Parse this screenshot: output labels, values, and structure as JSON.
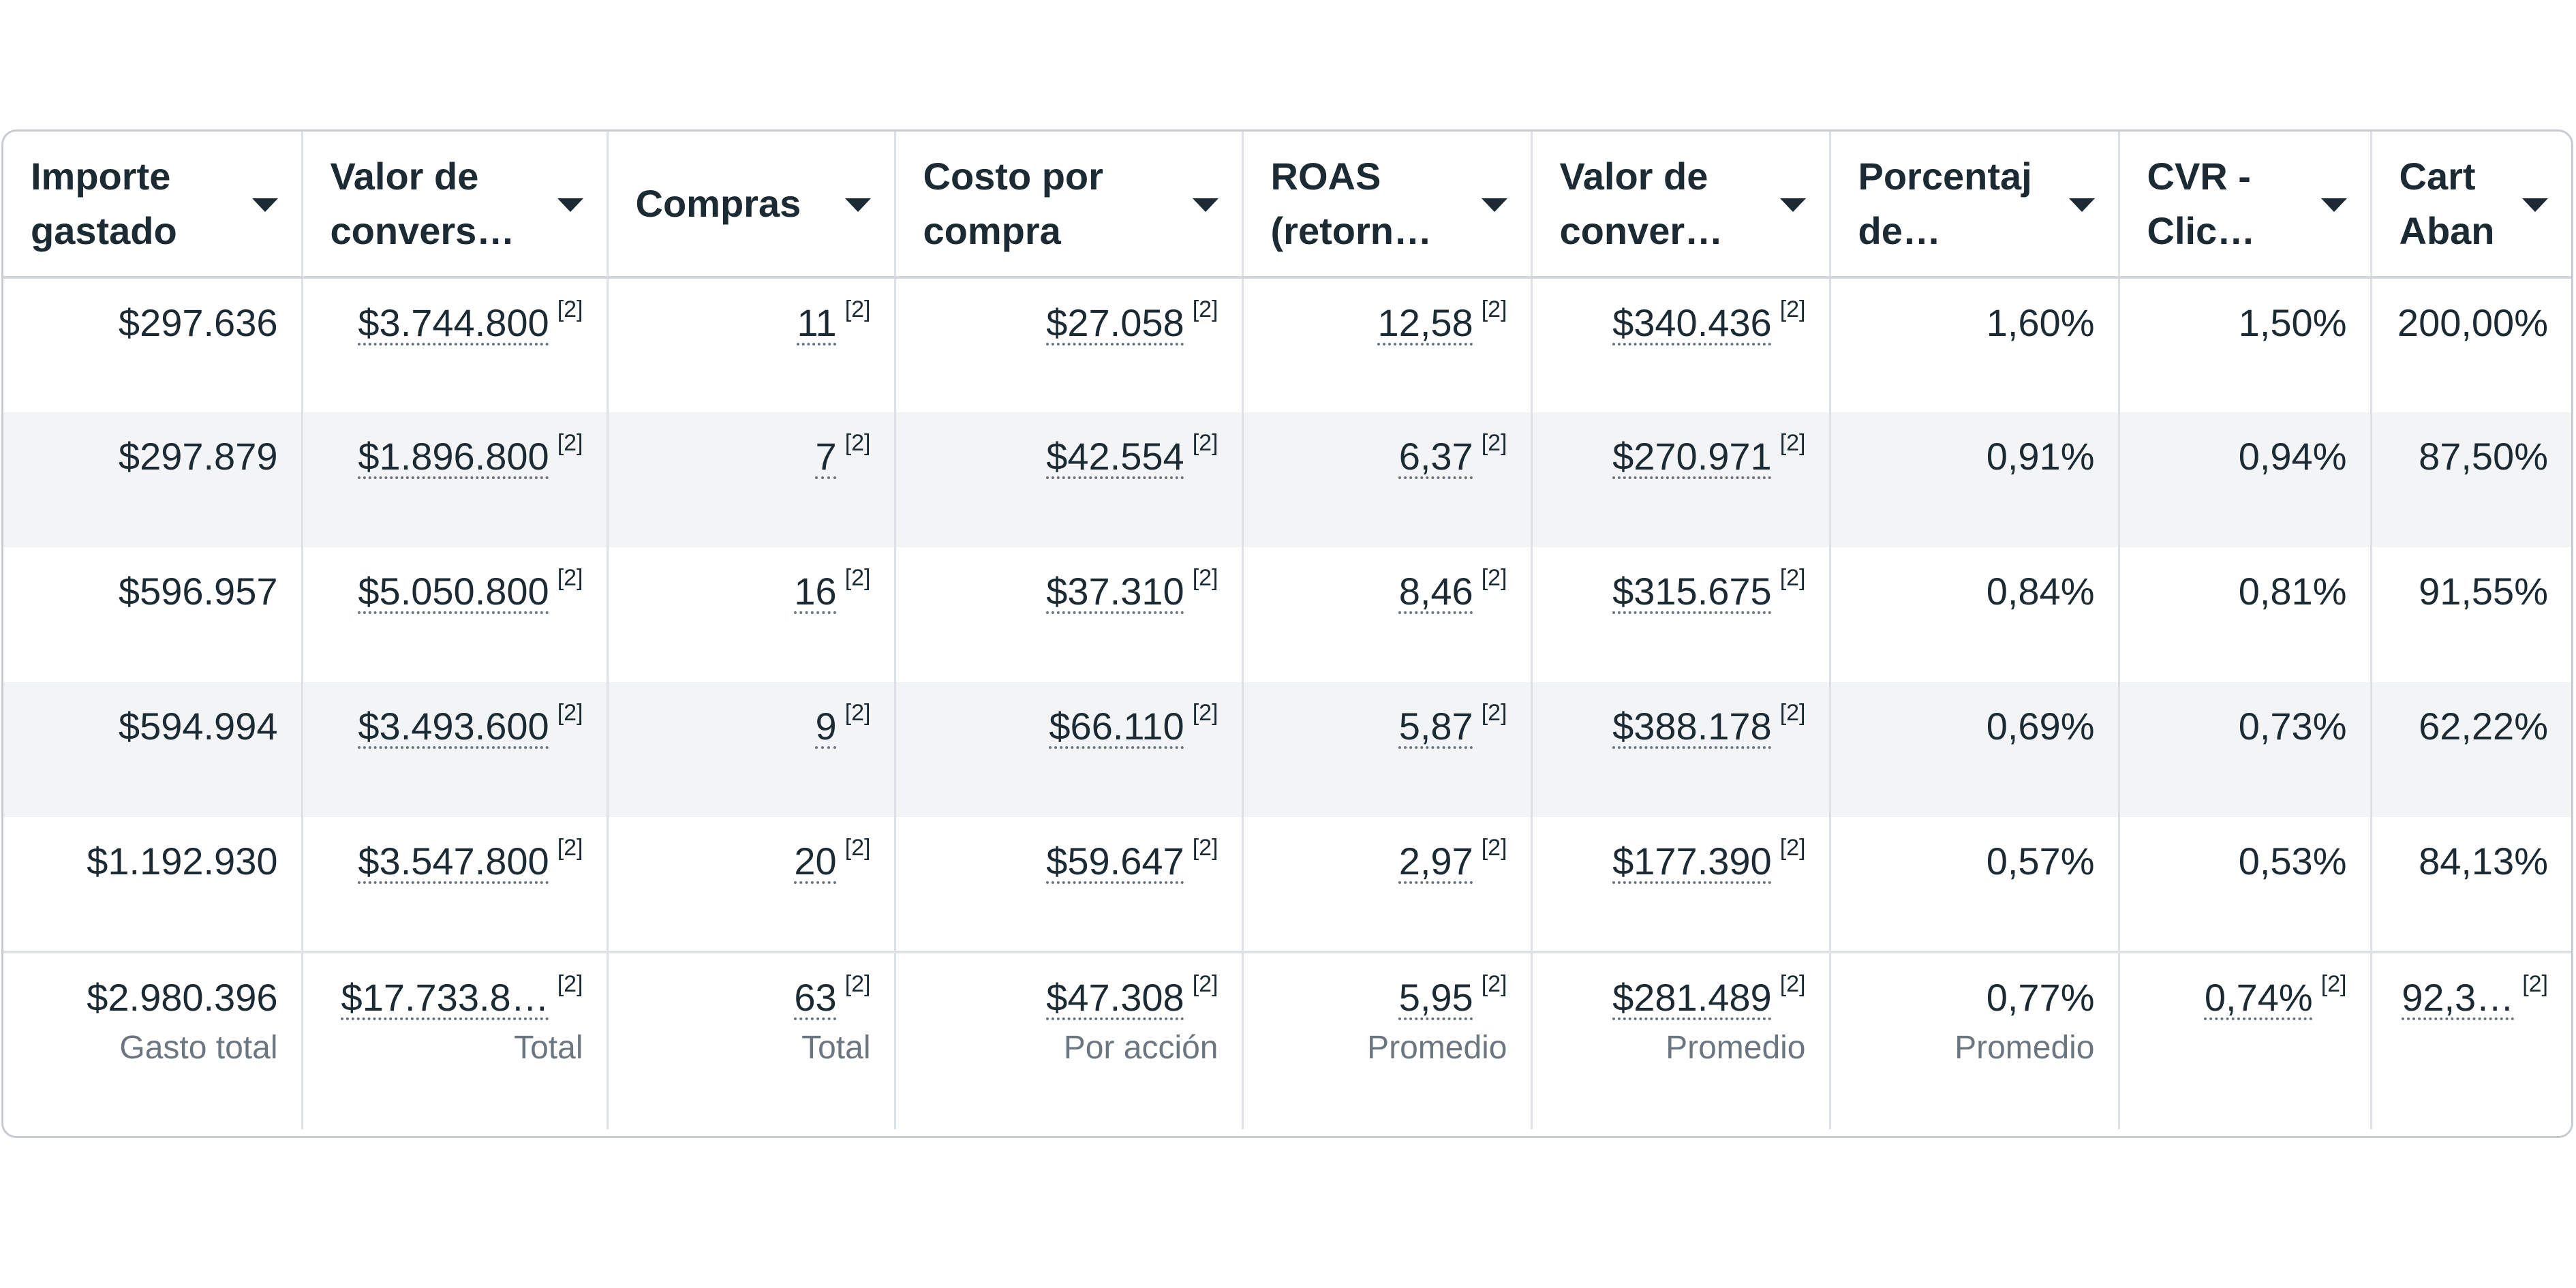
{
  "headers": [
    "Importe\ngastado",
    "Valor de\nconvers…",
    "Compras",
    "Costo por\ncompra",
    "ROAS\n(retorn…",
    "Valor de\nconver…",
    "Porcentaj\nde…",
    "CVR -\nClic…",
    "Cart\nAban"
  ],
  "rows": [
    {
      "importe": "$297.636",
      "valor_conv": "$3.744.800",
      "compras": "11",
      "costo_compra": "$27.058",
      "roas": "12,58",
      "valor_conver": "$340.436",
      "porcentaje": "1,60%",
      "cvr": "1,50%",
      "cart": "200,00%"
    },
    {
      "importe": "$297.879",
      "valor_conv": "$1.896.800",
      "compras": "7",
      "costo_compra": "$42.554",
      "roas": "6,37",
      "valor_conver": "$270.971",
      "porcentaje": "0,91%",
      "cvr": "0,94%",
      "cart": "87,50%"
    },
    {
      "importe": "$596.957",
      "valor_conv": "$5.050.800",
      "compras": "16",
      "costo_compra": "$37.310",
      "roas": "8,46",
      "valor_conver": "$315.675",
      "porcentaje": "0,84%",
      "cvr": "0,81%",
      "cart": "91,55%"
    },
    {
      "importe": "$594.994",
      "valor_conv": "$3.493.600",
      "compras": "9",
      "costo_compra": "$66.110",
      "roas": "5,87",
      "valor_conver": "$388.178",
      "porcentaje": "0,69%",
      "cvr": "0,73%",
      "cart": "62,22%"
    },
    {
      "importe": "$1.192.930",
      "valor_conv": "$3.547.800",
      "compras": "20",
      "costo_compra": "$59.647",
      "roas": "2,97",
      "valor_conver": "$177.390",
      "porcentaje": "0,57%",
      "cvr": "0,53%",
      "cart": "84,13%"
    }
  ],
  "marker": "[2]",
  "totals": {
    "importe": "$2.980.396",
    "importe_label": "Gasto total",
    "valor_conv": "$17.733.8…",
    "valor_conv_label": "Total",
    "compras": "63",
    "compras_label": "Total",
    "costo_compra": "$47.308",
    "costo_compra_label": "Por acción",
    "roas": "5,95",
    "roas_label": "Promedio",
    "valor_conver": "$281.489",
    "valor_conver_label": "Promedio",
    "porcentaje": "0,77%",
    "porcentaje_label": "Promedio",
    "cvr": "0,74%",
    "cart": "92,3…"
  },
  "colors": {
    "text": "#1c2b33",
    "muted": "#6b7680",
    "row_alt": "#f3f4f6",
    "border": "#c8ccd1"
  }
}
